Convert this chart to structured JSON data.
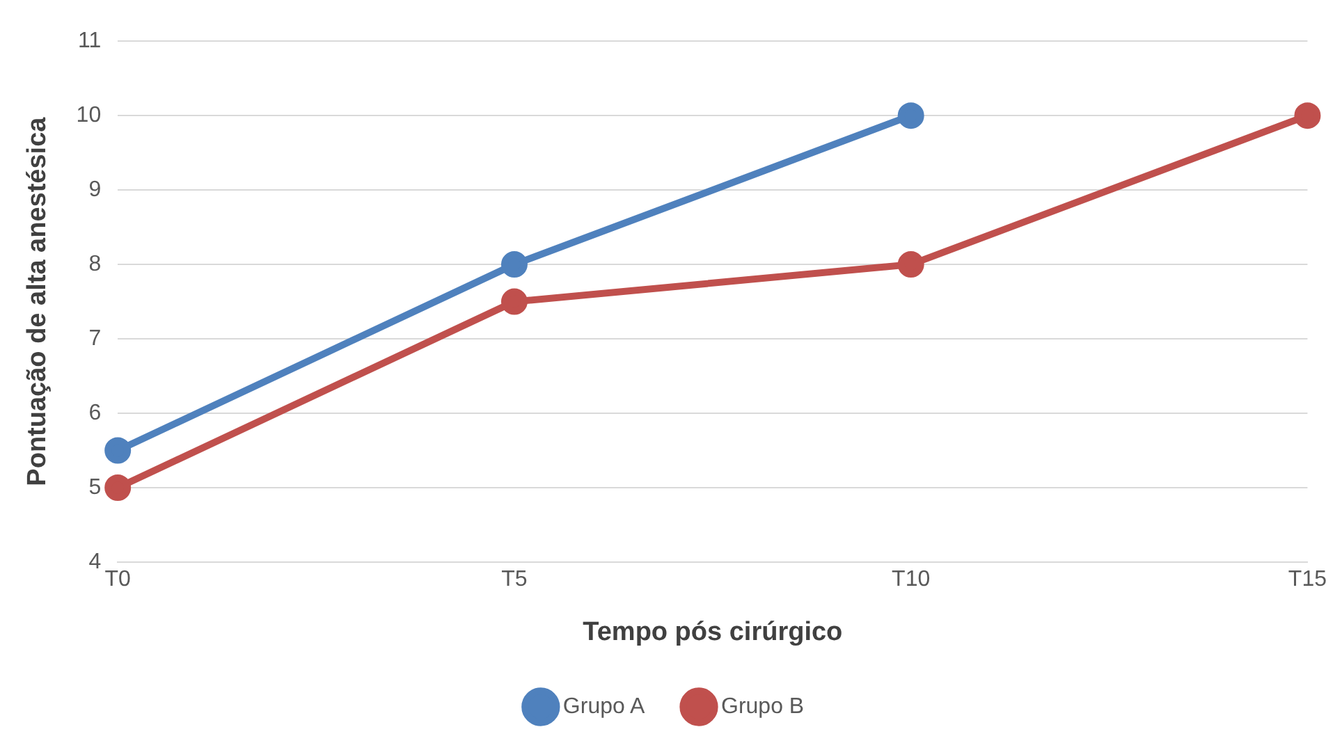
{
  "chart_data": {
    "type": "line",
    "xlabel": "Tempo pós cirúrgico",
    "ylabel": "Pontuação de alta anestésica",
    "categories": [
      "T0",
      "T5",
      "T10",
      "T15"
    ],
    "series": [
      {
        "name": "Grupo A",
        "color": "#4f81bd",
        "values": [
          5.5,
          8,
          10,
          null
        ]
      },
      {
        "name": "Grupo B",
        "color": "#c0504d",
        "values": [
          5,
          7.5,
          8,
          10
        ]
      }
    ],
    "ylim": [
      4,
      11
    ],
    "yticks": [
      4,
      5,
      6,
      7,
      8,
      9,
      10,
      11
    ],
    "grid": "y",
    "legend": "bottom",
    "marker": "circle",
    "line_style": "solid"
  }
}
